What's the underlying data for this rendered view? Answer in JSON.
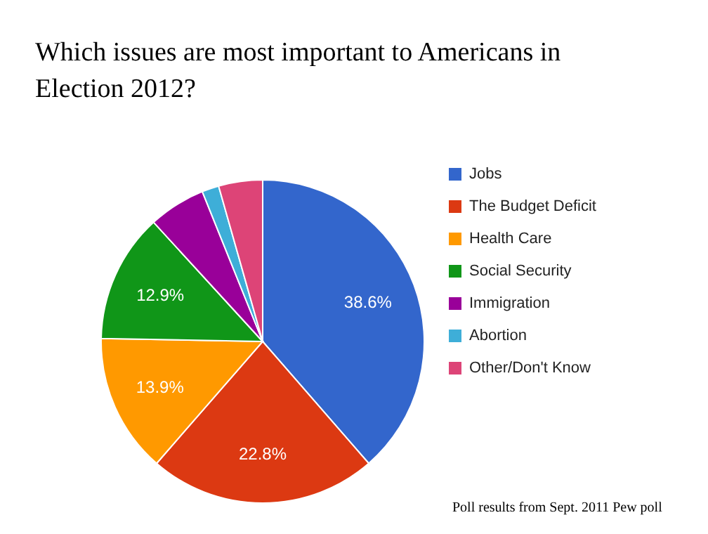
{
  "chart_data": {
    "type": "pie",
    "title": "Which issues are most important to Americans in Election 2012?",
    "categories": [
      "Jobs",
      "The Budget Deficit",
      "Health Care",
      "Social Security",
      "Immigration",
      "Abortion",
      "Other/Don't Know"
    ],
    "values": [
      38.6,
      22.8,
      13.9,
      12.9,
      5.7,
      1.7,
      4.4
    ],
    "colors": [
      "#3366cc",
      "#dc3912",
      "#ff9900",
      "#109618",
      "#990099",
      "#3eaed8",
      "#dd4477"
    ],
    "value_labels": [
      "38.6%",
      "22.8%",
      "13.9%",
      "12.9%",
      null,
      null,
      null
    ],
    "legend": "right",
    "annotations": [
      "Poll results from Sept. 2011 Pew poll"
    ]
  }
}
